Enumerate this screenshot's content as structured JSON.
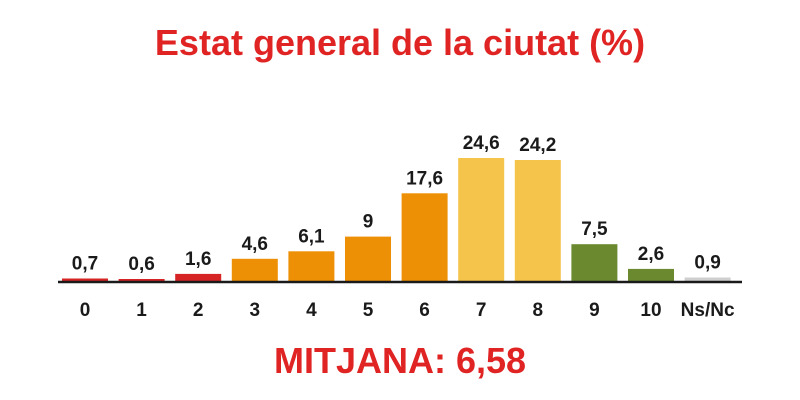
{
  "chart_data": {
    "type": "bar",
    "title": "Estat general de la ciutat (%)",
    "categories": [
      "0",
      "1",
      "2",
      "3",
      "4",
      "5",
      "6",
      "7",
      "8",
      "9",
      "10",
      "Ns/Nc"
    ],
    "values": [
      0.7,
      0.6,
      1.6,
      4.6,
      6.1,
      9,
      17.6,
      24.6,
      24.2,
      7.5,
      2.6,
      0.9
    ],
    "value_labels": [
      "0,7",
      "0,6",
      "1,6",
      "4,6",
      "6,1",
      "9",
      "17,6",
      "24,6",
      "24,2",
      "7,5",
      "2,6",
      "0,9"
    ],
    "colors": [
      "#d62424",
      "#d62424",
      "#d62424",
      "#ee9005",
      "#ee9005",
      "#ee9005",
      "#ee9005",
      "#f4c54a",
      "#f4c54a",
      "#6b8a2f",
      "#6b8a2f",
      "#cfcfcf"
    ],
    "xlabel": "",
    "ylabel": "",
    "ylim": [
      0,
      25
    ],
    "grid": false
  },
  "footer": {
    "average_text": "MITJANA: 6,58"
  }
}
